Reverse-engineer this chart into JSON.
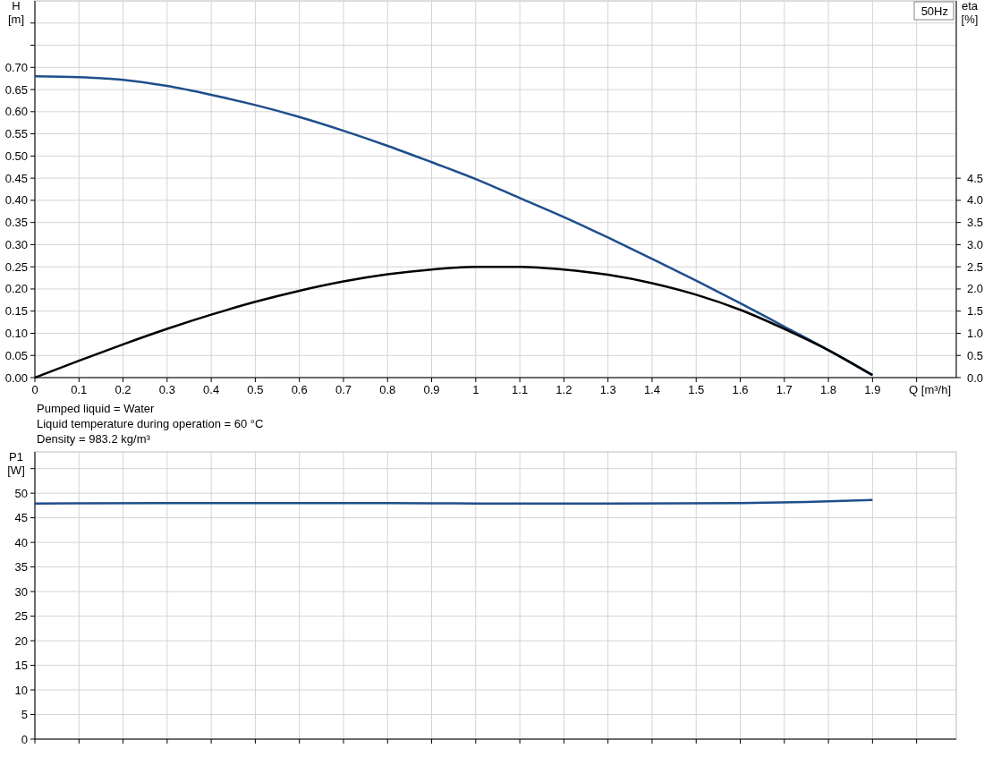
{
  "chart_data": [
    {
      "type": "line",
      "xlabel": "Q [m³/h]",
      "ylabel": "H [m]",
      "y2label": "eta [%]",
      "annotations": [
        "50Hz",
        "Pumped liquid = Water",
        "Liquid temperature during operation = 60 °C",
        "Density = 983.2 kg/m³"
      ],
      "x": [
        0,
        0.1,
        0.2,
        0.3,
        0.4,
        0.5,
        0.6,
        0.7,
        0.8,
        0.9,
        1.0,
        1.1,
        1.2,
        1.3,
        1.4,
        1.5,
        1.6,
        1.7,
        1.8,
        1.9
      ],
      "series": [
        {
          "color": "#1f4e8c",
          "values": [
            0.68,
            0.678,
            0.672,
            0.658,
            0.638,
            0.615,
            0.588,
            0.557,
            0.523,
            0.486,
            0.448,
            0.405,
            0.362,
            0.316,
            0.268,
            0.219,
            0.168,
            0.115,
            0.062,
            0.005
          ]
        },
        {
          "color": "#000000",
          "axis": "y2",
          "values": [
            0,
            0.38,
            0.75,
            1.1,
            1.42,
            1.71,
            1.96,
            2.17,
            2.33,
            2.44,
            2.5,
            2.5,
            2.44,
            2.32,
            2.13,
            1.87,
            1.53,
            1.1,
            0.62,
            0.06
          ]
        }
      ],
      "xlim": [
        0,
        2.09
      ],
      "xticks": [
        0,
        0.1,
        0.2,
        0.3,
        0.4,
        0.5,
        0.6,
        0.7,
        0.8,
        0.9,
        1,
        1.1,
        1.2,
        1.3,
        1.4,
        1.5,
        1.6,
        1.7,
        1.8,
        1.9,
        {
          "value": 2.0,
          "label": null
        }
      ],
      "ylim": [
        0,
        0.85
      ],
      "yticks": [
        {
          "value": 0,
          "label": "0.00"
        },
        {
          "value": 0.05,
          "label": "0.05"
        },
        {
          "value": 0.1,
          "label": "0.10"
        },
        {
          "value": 0.15,
          "label": "0.15"
        },
        {
          "value": 0.2,
          "label": "0.20"
        },
        {
          "value": 0.25,
          "label": "0.25"
        },
        {
          "value": 0.3,
          "label": "0.30"
        },
        {
          "value": 0.35,
          "label": "0.35"
        },
        {
          "value": 0.4,
          "label": "0.40"
        },
        {
          "value": 0.45,
          "label": "0.45"
        },
        {
          "value": 0.5,
          "label": "0.50"
        },
        {
          "value": 0.55,
          "label": "0.55"
        },
        {
          "value": 0.6,
          "label": "0.60"
        },
        {
          "value": 0.65,
          "label": "0.65"
        },
        {
          "value": 0.7,
          "label": "0.70"
        },
        {
          "value": 0.75,
          "label": null
        },
        {
          "value": 0.8,
          "label": null
        }
      ],
      "y2lim": [
        0,
        8.5
      ],
      "y2ticks": [
        {
          "value": 0,
          "label": "0.0"
        },
        0.5,
        {
          "value": 1,
          "label": "1.0"
        },
        1.5,
        {
          "value": 2,
          "label": "2.0"
        },
        2.5,
        {
          "value": 3,
          "label": "3.0"
        },
        3.5,
        {
          "value": 4,
          "label": "4.0"
        },
        4.5
      ],
      "grid": true,
      "marker": "none",
      "line_style": "solid"
    },
    {
      "type": "line",
      "ylabel": "P1 [W]",
      "tick_labels": "y",
      "x": [
        0,
        0.3,
        0.5,
        0.8,
        1.0,
        1.3,
        1.6,
        1.75,
        1.9
      ],
      "series": [
        {
          "color": "#1f4e8c",
          "values": [
            47.9,
            48.0,
            48.0,
            48.0,
            47.9,
            47.9,
            48.0,
            48.2,
            48.6
          ]
        }
      ],
      "xlim": [
        0,
        2.09
      ],
      "xticks": [
        0,
        0.1,
        0.2,
        0.3,
        0.4,
        0.5,
        0.6,
        0.7,
        0.8,
        0.9,
        1,
        1.1,
        1.2,
        1.3,
        1.4,
        1.5,
        1.6,
        1.7,
        1.8,
        1.9,
        2.0
      ],
      "ylim": [
        0,
        58.4
      ],
      "yticks": [
        0,
        5,
        10,
        15,
        20,
        25,
        30,
        35,
        40,
        45,
        50,
        {
          "value": 55,
          "label": null
        }
      ],
      "grid": true,
      "marker": "none",
      "line_style": "solid"
    }
  ]
}
